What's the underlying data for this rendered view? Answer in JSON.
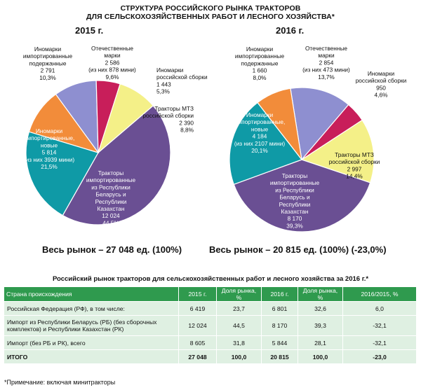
{
  "main_title": {
    "line1": "СТРУКТУРА РОССИЙСКОГО РЫНКА ТРАКТОРОВ",
    "line2": "ДЛЯ СЕЛЬСКОХОЗЯЙСТВЕННЫХ РАБОТ И ЛЕСНОГО ХОЗЯЙСТВА*"
  },
  "chart_data": [
    {
      "type": "pie",
      "title": "2015 г.",
      "total_label": "Весь рынок – 27 048 ед. (100%)",
      "slices": [
        {
          "name": "Отечественные марки",
          "value": 2586,
          "percent": 9.6,
          "color": "#8e8fd0",
          "label": [
            "Отечественные",
            "марки",
            "2 586",
            "(из них 878 мини)",
            "9,6%"
          ]
        },
        {
          "name": "Иномарки российской сборки",
          "value": 1443,
          "percent": 5.3,
          "color": "#c81e5a",
          "label": [
            "Иномарки",
            "российской сборки",
            "1 443",
            "5,3%"
          ]
        },
        {
          "name": "Тракторы МТЗ российской сборки",
          "value": 2390,
          "percent": 8.8,
          "color": "#f4f088",
          "label": [
            "Тракторы МТЗ",
            "российской сборки",
            "2 390",
            "8,8%"
          ]
        },
        {
          "name": "Тракторы импортированные из Республики Беларусь и Республики Казахстан",
          "value": 12024,
          "percent": 44.5,
          "color": "#6a4f93",
          "label": [
            "Тракторы",
            "импортированные",
            "из Республики",
            "Беларусь и",
            "Республики",
            "Казахстан",
            "12 024",
            "44,5%"
          ]
        },
        {
          "name": "Иномарки импортированные, новые",
          "value": 5814,
          "percent": 21.5,
          "color": "#0f9aa6",
          "label": [
            "Иномарки",
            "импортированные,",
            "новые",
            "5 814",
            "(из них 3939 мини)",
            "21,5%"
          ]
        },
        {
          "name": "Иномарки импортированные подержанные",
          "value": 2791,
          "percent": 10.3,
          "color": "#f28c3a",
          "label": [
            "Иномарки",
            "импортированные",
            "подержанные",
            "2 791",
            "10,3%"
          ]
        }
      ]
    },
    {
      "type": "pie",
      "title": "2016 г.",
      "total_label": "Весь рынок – 20 815 ед. (100%) (-23,0%)",
      "slices": [
        {
          "name": "Отечественные марки",
          "value": 2854,
          "percent": 13.7,
          "color": "#8e8fd0",
          "label": [
            "Отечественные",
            "марки",
            "2 854",
            "(из них 473 мини)",
            "13,7%"
          ]
        },
        {
          "name": "Иномарки российской сборки",
          "value": 950,
          "percent": 4.6,
          "color": "#c81e5a",
          "label": [
            "Иномарки",
            "российской сборки",
            "950",
            "4,6%"
          ]
        },
        {
          "name": "Тракторы МТЗ российской сборки",
          "value": 2997,
          "percent": 14.4,
          "color": "#f4f088",
          "label": [
            "Тракторы МТЗ",
            "российской сборки",
            "2 997",
            "14,4%"
          ]
        },
        {
          "name": "Тракторы импортированные из Республики Беларусь и Республики Казахстан",
          "value": 8170,
          "percent": 39.3,
          "color": "#6a4f93",
          "label": [
            "Тракторы",
            "импортированные",
            "из Республики",
            "Беларусь и",
            "Республики",
            "Казахстан",
            "8 170",
            "39,3%"
          ]
        },
        {
          "name": "Иномарки импортированные, новые",
          "value": 4184,
          "percent": 20.1,
          "color": "#0f9aa6",
          "label": [
            "Иномарки",
            "импортированные,",
            "новые",
            "4 184",
            "(из них 2107 мини)",
            "20,1%"
          ]
        },
        {
          "name": "Иномарки импортированные подержанные",
          "value": 1660,
          "percent": 8.0,
          "color": "#f28c3a",
          "label": [
            "Иномарки",
            "импортированные",
            "подержанные",
            "1 660",
            "8,0%"
          ]
        }
      ]
    }
  ],
  "table": {
    "title": "Российский рынок тракторов для сельскохозяйственных работ и лесного хозяйства за 2016 г.*",
    "headers": [
      "Страна происхождения",
      "2015 г.",
      "Доля рынка, %",
      "2016 г.",
      "Доля рынка, %",
      "2016/2015, %"
    ],
    "rows": [
      [
        "Российская Федерация (РФ), в том числе:",
        "6 419",
        "23,7",
        "6 801",
        "32,6",
        "6,0"
      ],
      [
        "Импорт из Республики Беларусь (РБ) (без сборочных комплектов) и Республики Казахстан (РК)",
        "12 024",
        "44,5",
        "8 170",
        "39,3",
        "-32,1"
      ],
      [
        "Импорт (без РБ и РК), всего",
        "8 605",
        "31,8",
        "5 844",
        "28,1",
        "-32,1"
      ],
      [
        "ИТОГО",
        "27 048",
        "100,0",
        "20 815",
        "100,0",
        "-23,0"
      ]
    ]
  },
  "note": "*Примечание: включая минитракторы"
}
